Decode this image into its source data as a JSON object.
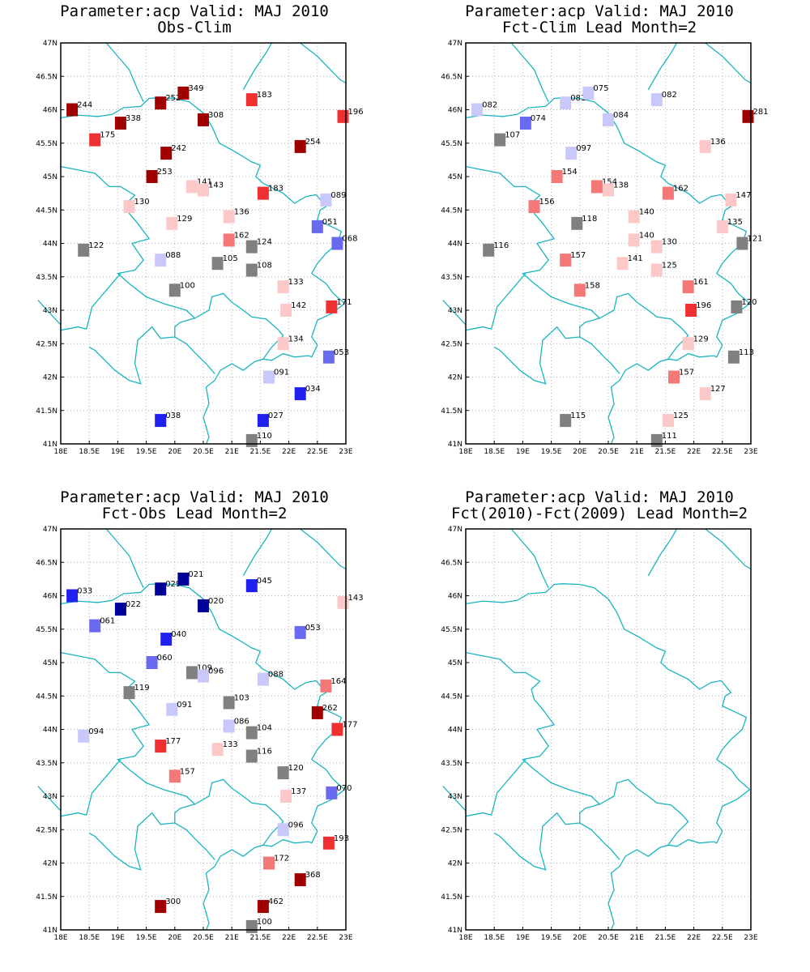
{
  "map": {
    "lon_range": [
      18,
      23
    ],
    "lat_range": [
      41,
      47
    ],
    "lon_ticks": [
      "18E",
      "18.5E",
      "19E",
      "19.5E",
      "20E",
      "20.5E",
      "21E",
      "21.5E",
      "22E",
      "22.5E",
      "23E"
    ],
    "lat_ticks": [
      "41N",
      "41.5N",
      "42N",
      "42.5N",
      "43N",
      "43.5N",
      "44N",
      "44.5N",
      "45N",
      "45.5N",
      "46N",
      "46.5N",
      "47N"
    ],
    "grid": true,
    "border_color": "#1ab5c0"
  },
  "panels": [
    {
      "id": "obs-clim",
      "title_line1": "Parameter:acp Valid: MAJ 2010",
      "title_line2": "Obs-Clim",
      "stations": [
        {
          "lon": 18.2,
          "lat": 46.0,
          "label": "244",
          "color": "#a00000"
        },
        {
          "lon": 19.05,
          "lat": 45.8,
          "label": "338",
          "color": "#a00000"
        },
        {
          "lon": 19.75,
          "lat": 46.1,
          "label": "252",
          "color": "#a00000"
        },
        {
          "lon": 20.15,
          "lat": 46.25,
          "label": "349",
          "color": "#a00000"
        },
        {
          "lon": 20.5,
          "lat": 45.85,
          "label": "308",
          "color": "#a00000"
        },
        {
          "lon": 21.35,
          "lat": 46.15,
          "label": "183",
          "color": "#f03030"
        },
        {
          "lon": 22.95,
          "lat": 45.9,
          "label": "196",
          "color": "#f03030"
        },
        {
          "lon": 18.6,
          "lat": 45.55,
          "label": "175",
          "color": "#f03030"
        },
        {
          "lon": 19.85,
          "lat": 45.35,
          "label": "242",
          "color": "#a00000"
        },
        {
          "lon": 22.2,
          "lat": 45.45,
          "label": "254",
          "color": "#a00000"
        },
        {
          "lon": 19.6,
          "lat": 45.0,
          "label": "253",
          "color": "#a00000"
        },
        {
          "lon": 20.3,
          "lat": 44.85,
          "label": "141",
          "color": "#fcc8c8"
        },
        {
          "lon": 20.5,
          "lat": 44.8,
          "label": "143",
          "color": "#fcc8c8"
        },
        {
          "lon": 21.55,
          "lat": 44.75,
          "label": "183",
          "color": "#f03030"
        },
        {
          "lon": 22.65,
          "lat": 44.65,
          "label": "089",
          "color": "#c8c8fa"
        },
        {
          "lon": 19.2,
          "lat": 44.55,
          "label": "130",
          "color": "#fcc8c8"
        },
        {
          "lon": 19.95,
          "lat": 44.3,
          "label": "129",
          "color": "#fcc8c8"
        },
        {
          "lon": 20.95,
          "lat": 44.4,
          "label": "136",
          "color": "#fcc8c8"
        },
        {
          "lon": 22.5,
          "lat": 44.25,
          "label": "051",
          "color": "#6a6af0"
        },
        {
          "lon": 20.95,
          "lat": 44.05,
          "label": "162",
          "color": "#f57878"
        },
        {
          "lon": 21.35,
          "lat": 43.95,
          "label": "124",
          "color": "#808080"
        },
        {
          "lon": 22.85,
          "lat": 44.0,
          "label": "068",
          "color": "#6a6af0"
        },
        {
          "lon": 18.4,
          "lat": 43.9,
          "label": "122",
          "color": "#808080"
        },
        {
          "lon": 19.75,
          "lat": 43.75,
          "label": "088",
          "color": "#c8c8fa"
        },
        {
          "lon": 20.75,
          "lat": 43.7,
          "label": "105",
          "color": "#808080"
        },
        {
          "lon": 21.35,
          "lat": 43.6,
          "label": "108",
          "color": "#808080"
        },
        {
          "lon": 20.0,
          "lat": 43.3,
          "label": "100",
          "color": "#808080"
        },
        {
          "lon": 21.9,
          "lat": 43.35,
          "label": "133",
          "color": "#fcc8c8"
        },
        {
          "lon": 21.95,
          "lat": 43.0,
          "label": "142",
          "color": "#fcc8c8"
        },
        {
          "lon": 22.75,
          "lat": 43.05,
          "label": "171",
          "color": "#f03030"
        },
        {
          "lon": 21.9,
          "lat": 42.5,
          "label": "134",
          "color": "#fcc8c8"
        },
        {
          "lon": 22.7,
          "lat": 42.3,
          "label": "053",
          "color": "#6a6af0"
        },
        {
          "lon": 21.65,
          "lat": 42.0,
          "label": "091",
          "color": "#c8c8fa"
        },
        {
          "lon": 22.2,
          "lat": 41.75,
          "label": "034",
          "color": "#2020f0"
        },
        {
          "lon": 19.75,
          "lat": 41.35,
          "label": "038",
          "color": "#2020f0"
        },
        {
          "lon": 21.55,
          "lat": 41.35,
          "label": "027",
          "color": "#2020f0"
        },
        {
          "lon": 21.35,
          "lat": 41.05,
          "label": "110",
          "color": "#808080"
        }
      ]
    },
    {
      "id": "fct-clim",
      "title_line1": "Parameter:acp Valid: MAJ 2010",
      "title_line2": "Fct-Clim Lead Month=2",
      "stations": [
        {
          "lon": 18.2,
          "lat": 46.0,
          "label": "082",
          "color": "#c8c8fa"
        },
        {
          "lon": 19.05,
          "lat": 45.8,
          "label": "074",
          "color": "#6a6af0"
        },
        {
          "lon": 19.75,
          "lat": 46.1,
          "label": "081",
          "color": "#c8c8fa"
        },
        {
          "lon": 20.15,
          "lat": 46.25,
          "label": "075",
          "color": "#c8c8fa"
        },
        {
          "lon": 20.5,
          "lat": 45.85,
          "label": "084",
          "color": "#c8c8fa"
        },
        {
          "lon": 21.35,
          "lat": 46.15,
          "label": "082",
          "color": "#c8c8fa"
        },
        {
          "lon": 22.95,
          "lat": 45.9,
          "label": "281",
          "color": "#a00000"
        },
        {
          "lon": 18.6,
          "lat": 45.55,
          "label": "107",
          "color": "#808080"
        },
        {
          "lon": 19.85,
          "lat": 45.35,
          "label": "097",
          "color": "#c8c8fa"
        },
        {
          "lon": 22.2,
          "lat": 45.45,
          "label": "136",
          "color": "#fcc8c8"
        },
        {
          "lon": 19.6,
          "lat": 45.0,
          "label": "154",
          "color": "#f57878"
        },
        {
          "lon": 20.3,
          "lat": 44.85,
          "label": "154",
          "color": "#f57878"
        },
        {
          "lon": 20.5,
          "lat": 44.8,
          "label": "138",
          "color": "#fcc8c8"
        },
        {
          "lon": 21.55,
          "lat": 44.75,
          "label": "162",
          "color": "#f57878"
        },
        {
          "lon": 22.65,
          "lat": 44.65,
          "label": "147",
          "color": "#fcc8c8"
        },
        {
          "lon": 19.2,
          "lat": 44.55,
          "label": "156",
          "color": "#f57878"
        },
        {
          "lon": 19.95,
          "lat": 44.3,
          "label": "118",
          "color": "#808080"
        },
        {
          "lon": 20.95,
          "lat": 44.4,
          "label": "140",
          "color": "#fcc8c8"
        },
        {
          "lon": 22.5,
          "lat": 44.25,
          "label": "135",
          "color": "#fcc8c8"
        },
        {
          "lon": 20.95,
          "lat": 44.05,
          "label": "140",
          "color": "#fcc8c8"
        },
        {
          "lon": 21.35,
          "lat": 43.95,
          "label": "130",
          "color": "#fcc8c8"
        },
        {
          "lon": 22.85,
          "lat": 44.0,
          "label": "121",
          "color": "#808080"
        },
        {
          "lon": 18.4,
          "lat": 43.9,
          "label": "116",
          "color": "#808080"
        },
        {
          "lon": 19.75,
          "lat": 43.75,
          "label": "157",
          "color": "#f57878"
        },
        {
          "lon": 20.75,
          "lat": 43.7,
          "label": "141",
          "color": "#fcc8c8"
        },
        {
          "lon": 21.35,
          "lat": 43.6,
          "label": "125",
          "color": "#fcc8c8"
        },
        {
          "lon": 20.0,
          "lat": 43.3,
          "label": "158",
          "color": "#f57878"
        },
        {
          "lon": 21.9,
          "lat": 43.35,
          "label": "161",
          "color": "#f57878"
        },
        {
          "lon": 21.95,
          "lat": 43.0,
          "label": "196",
          "color": "#f03030"
        },
        {
          "lon": 22.75,
          "lat": 43.05,
          "label": "120",
          "color": "#808080"
        },
        {
          "lon": 21.9,
          "lat": 42.5,
          "label": "129",
          "color": "#fcc8c8"
        },
        {
          "lon": 22.7,
          "lat": 42.3,
          "label": "113",
          "color": "#808080"
        },
        {
          "lon": 21.65,
          "lat": 42.0,
          "label": "157",
          "color": "#f57878"
        },
        {
          "lon": 22.2,
          "lat": 41.75,
          "label": "127",
          "color": "#fcc8c8"
        },
        {
          "lon": 19.75,
          "lat": 41.35,
          "label": "115",
          "color": "#808080"
        },
        {
          "lon": 21.55,
          "lat": 41.35,
          "label": "125",
          "color": "#fcc8c8"
        },
        {
          "lon": 21.35,
          "lat": 41.05,
          "label": "111",
          "color": "#808080"
        }
      ]
    },
    {
      "id": "fct-obs",
      "title_line1": "Parameter:acp Valid: MAJ 2010",
      "title_line2": "Fct-Obs Lead Month=2",
      "stations": [
        {
          "lon": 18.2,
          "lat": 46.0,
          "label": "033",
          "color": "#2020f0"
        },
        {
          "lon": 19.05,
          "lat": 45.8,
          "label": "022",
          "color": "#000096"
        },
        {
          "lon": 19.75,
          "lat": 46.1,
          "label": "029",
          "color": "#000096"
        },
        {
          "lon": 20.15,
          "lat": 46.25,
          "label": "021",
          "color": "#000096"
        },
        {
          "lon": 20.5,
          "lat": 45.85,
          "label": "020",
          "color": "#000096"
        },
        {
          "lon": 21.35,
          "lat": 46.15,
          "label": "045",
          "color": "#2020f0"
        },
        {
          "lon": 22.95,
          "lat": 45.9,
          "label": "143",
          "color": "#fcc8c8"
        },
        {
          "lon": 18.6,
          "lat": 45.55,
          "label": "061",
          "color": "#6a6af0"
        },
        {
          "lon": 19.85,
          "lat": 45.35,
          "label": "040",
          "color": "#2020f0"
        },
        {
          "lon": 22.2,
          "lat": 45.45,
          "label": "053",
          "color": "#6a6af0"
        },
        {
          "lon": 19.6,
          "lat": 45.0,
          "label": "060",
          "color": "#6a6af0"
        },
        {
          "lon": 20.3,
          "lat": 44.85,
          "label": "109",
          "color": "#808080"
        },
        {
          "lon": 20.5,
          "lat": 44.8,
          "label": "096",
          "color": "#c8c8fa"
        },
        {
          "lon": 21.55,
          "lat": 44.75,
          "label": "088",
          "color": "#c8c8fa"
        },
        {
          "lon": 22.65,
          "lat": 44.65,
          "label": "164",
          "color": "#f57878"
        },
        {
          "lon": 19.2,
          "lat": 44.55,
          "label": "119",
          "color": "#808080"
        },
        {
          "lon": 19.95,
          "lat": 44.3,
          "label": "091",
          "color": "#c8c8fa"
        },
        {
          "lon": 20.95,
          "lat": 44.4,
          "label": "103",
          "color": "#808080"
        },
        {
          "lon": 22.5,
          "lat": 44.25,
          "label": "262",
          "color": "#a00000"
        },
        {
          "lon": 20.95,
          "lat": 44.05,
          "label": "086",
          "color": "#c8c8fa"
        },
        {
          "lon": 21.35,
          "lat": 43.95,
          "label": "104",
          "color": "#808080"
        },
        {
          "lon": 22.85,
          "lat": 44.0,
          "label": "177",
          "color": "#f03030"
        },
        {
          "lon": 18.4,
          "lat": 43.9,
          "label": "094",
          "color": "#c8c8fa"
        },
        {
          "lon": 19.75,
          "lat": 43.75,
          "label": "177",
          "color": "#f03030"
        },
        {
          "lon": 20.75,
          "lat": 43.7,
          "label": "133",
          "color": "#fcc8c8"
        },
        {
          "lon": 21.35,
          "lat": 43.6,
          "label": "116",
          "color": "#808080"
        },
        {
          "lon": 20.0,
          "lat": 43.3,
          "label": "157",
          "color": "#f57878"
        },
        {
          "lon": 21.9,
          "lat": 43.35,
          "label": "120",
          "color": "#808080"
        },
        {
          "lon": 21.95,
          "lat": 43.0,
          "label": "137",
          "color": "#fcc8c8"
        },
        {
          "lon": 22.75,
          "lat": 43.05,
          "label": "070",
          "color": "#6a6af0"
        },
        {
          "lon": 21.9,
          "lat": 42.5,
          "label": "096",
          "color": "#c8c8fa"
        },
        {
          "lon": 22.7,
          "lat": 42.3,
          "label": "193",
          "color": "#f03030"
        },
        {
          "lon": 21.65,
          "lat": 42.0,
          "label": "172",
          "color": "#f57878"
        },
        {
          "lon": 22.2,
          "lat": 41.75,
          "label": "368",
          "color": "#a00000"
        },
        {
          "lon": 19.75,
          "lat": 41.35,
          "label": "300",
          "color": "#a00000"
        },
        {
          "lon": 21.55,
          "lat": 41.35,
          "label": "462",
          "color": "#a00000"
        },
        {
          "lon": 21.35,
          "lat": 41.05,
          "label": "100",
          "color": "#808080"
        }
      ]
    },
    {
      "id": "fct-diff",
      "title_line1": "Parameter:acp Valid: MAJ 2010",
      "title_line2": "Fct(2010)-Fct(2009) Lead Month=2",
      "stations": []
    }
  ]
}
